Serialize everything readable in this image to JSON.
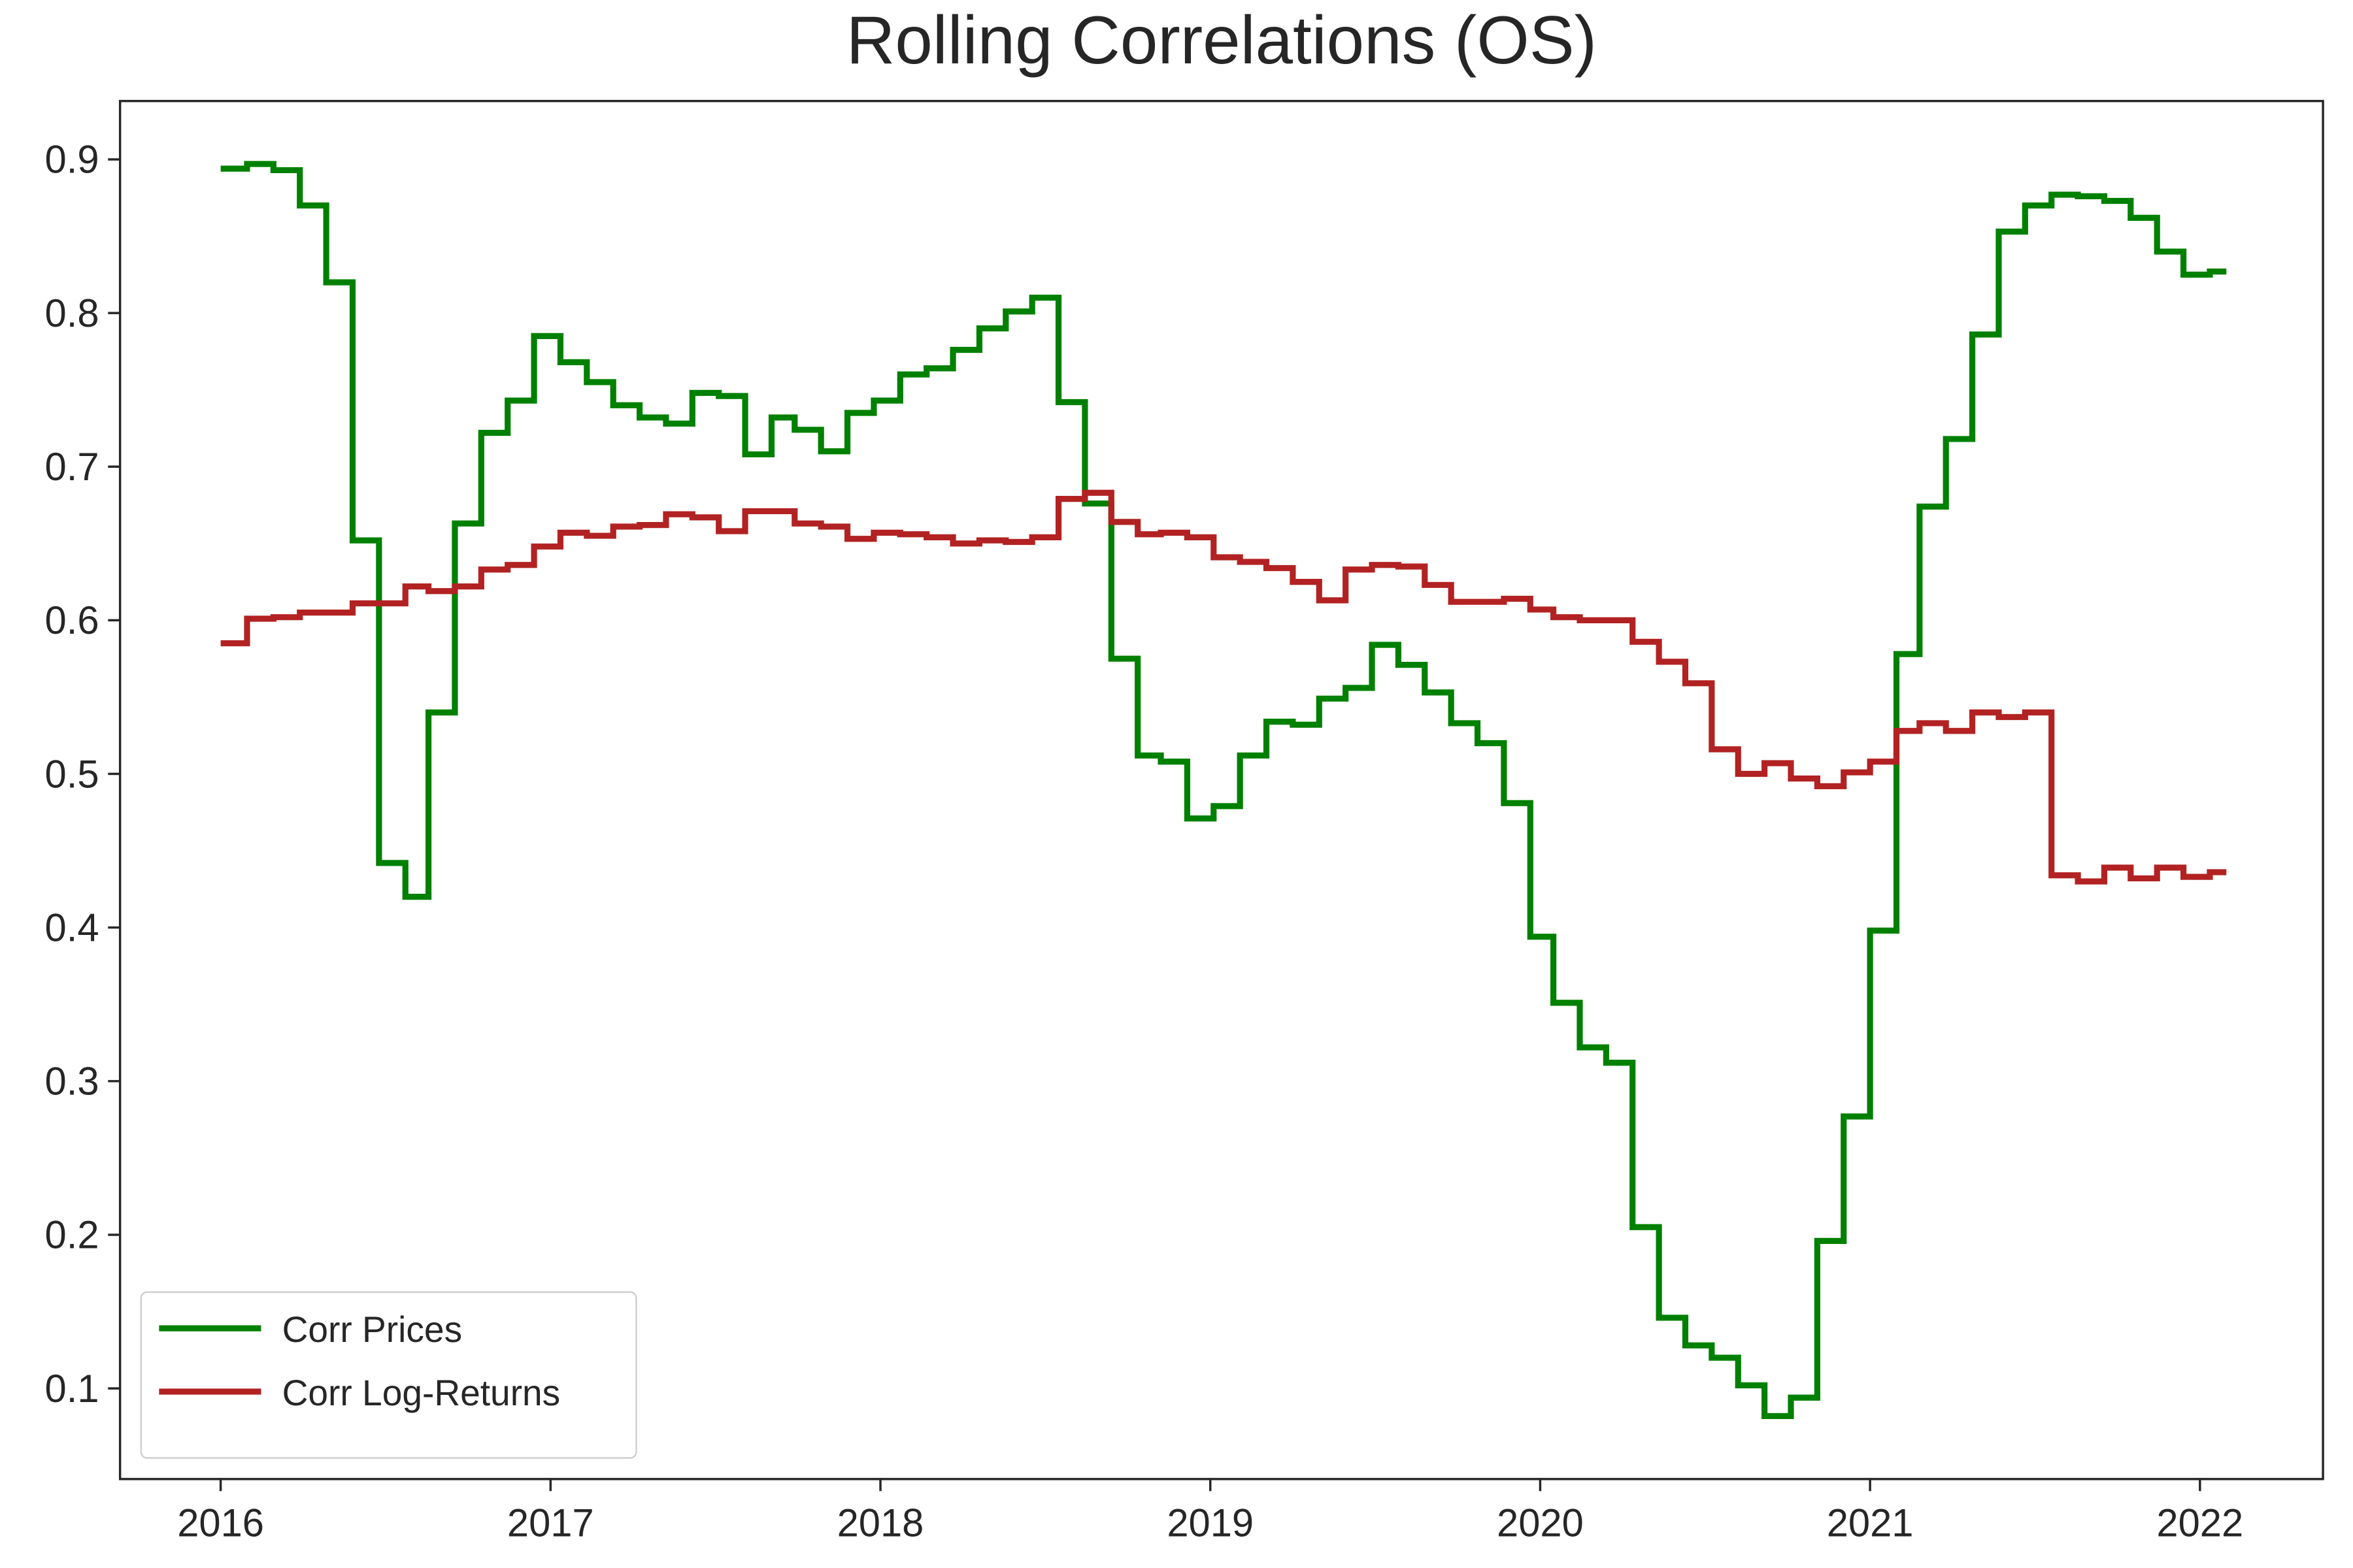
{
  "chart_data": {
    "type": "line",
    "drawstyle": "steps-post",
    "title": "Rolling Correlations (OS)",
    "x": [
      2016.0,
      2016.08,
      2016.16,
      2016.24,
      2016.32,
      2016.4,
      2016.48,
      2016.56,
      2016.63,
      2016.71,
      2016.79,
      2016.87,
      2016.95,
      2017.03,
      2017.11,
      2017.19,
      2017.27,
      2017.35,
      2017.43,
      2017.51,
      2017.59,
      2017.67,
      2017.74,
      2017.82,
      2017.9,
      2017.98,
      2018.06,
      2018.14,
      2018.22,
      2018.3,
      2018.38,
      2018.46,
      2018.54,
      2018.62,
      2018.7,
      2018.78,
      2018.85,
      2018.93,
      2019.01,
      2019.09,
      2019.17,
      2019.25,
      2019.33,
      2019.41,
      2019.49,
      2019.57,
      2019.65,
      2019.73,
      2019.81,
      2019.89,
      2019.97,
      2020.04,
      2020.12,
      2020.2,
      2020.28,
      2020.36,
      2020.44,
      2020.52,
      2020.6,
      2020.68,
      2020.76,
      2020.84,
      2020.92,
      2021.0,
      2021.08,
      2021.15,
      2021.23,
      2021.31,
      2021.39,
      2021.47,
      2021.55,
      2021.63,
      2021.71,
      2021.79,
      2021.87,
      2021.95,
      2022.03
    ],
    "series": [
      {
        "name": "Corr Prices",
        "color": "#008000",
        "values": [
          0.894,
          0.897,
          0.893,
          0.87,
          0.82,
          0.652,
          0.442,
          0.42,
          0.54,
          0.663,
          0.722,
          0.743,
          0.785,
          0.768,
          0.755,
          0.74,
          0.732,
          0.728,
          0.748,
          0.746,
          0.708,
          0.732,
          0.724,
          0.71,
          0.735,
          0.743,
          0.76,
          0.764,
          0.776,
          0.79,
          0.801,
          0.81,
          0.742,
          0.676,
          0.575,
          0.512,
          0.508,
          0.471,
          0.479,
          0.512,
          0.534,
          0.532,
          0.549,
          0.556,
          0.584,
          0.571,
          0.553,
          0.533,
          0.52,
          0.481,
          0.394,
          0.351,
          0.322,
          0.312,
          0.205,
          0.146,
          0.128,
          0.12,
          0.102,
          0.082,
          0.094,
          0.196,
          0.277,
          0.398,
          0.578,
          0.674,
          0.718,
          0.786,
          0.853,
          0.87,
          0.877,
          0.876,
          0.873,
          0.862,
          0.84,
          0.825,
          0.827
        ]
      },
      {
        "name": "Corr Log-Returns",
        "color": "#b22222",
        "values": [
          0.585,
          0.601,
          0.602,
          0.605,
          0.605,
          0.611,
          0.611,
          0.622,
          0.619,
          0.622,
          0.633,
          0.636,
          0.648,
          0.657,
          0.655,
          0.661,
          0.662,
          0.669,
          0.667,
          0.658,
          0.671,
          0.671,
          0.663,
          0.661,
          0.653,
          0.657,
          0.656,
          0.654,
          0.65,
          0.652,
          0.651,
          0.654,
          0.679,
          0.683,
          0.664,
          0.656,
          0.657,
          0.654,
          0.641,
          0.638,
          0.634,
          0.625,
          0.613,
          0.633,
          0.636,
          0.635,
          0.623,
          0.612,
          0.612,
          0.614,
          0.607,
          0.602,
          0.6,
          0.6,
          0.586,
          0.573,
          0.559,
          0.516,
          0.5,
          0.507,
          0.497,
          0.492,
          0.501,
          0.508,
          0.528,
          0.533,
          0.528,
          0.54,
          0.537,
          0.54,
          0.434,
          0.43,
          0.439,
          0.432,
          0.439,
          0.433,
          0.436
        ]
      }
    ],
    "xlim": [
      2015.695,
      2022.373
    ],
    "xticks": [
      2016,
      2017,
      2018,
      2019,
      2020,
      2021,
      2022
    ],
    "ylim": [
      0.041,
      0.938
    ],
    "yticks": [
      0.1,
      0.2,
      0.3,
      0.4,
      0.5,
      0.6,
      0.7,
      0.8,
      0.9
    ],
    "grid": false,
    "legend": "lower left"
  }
}
